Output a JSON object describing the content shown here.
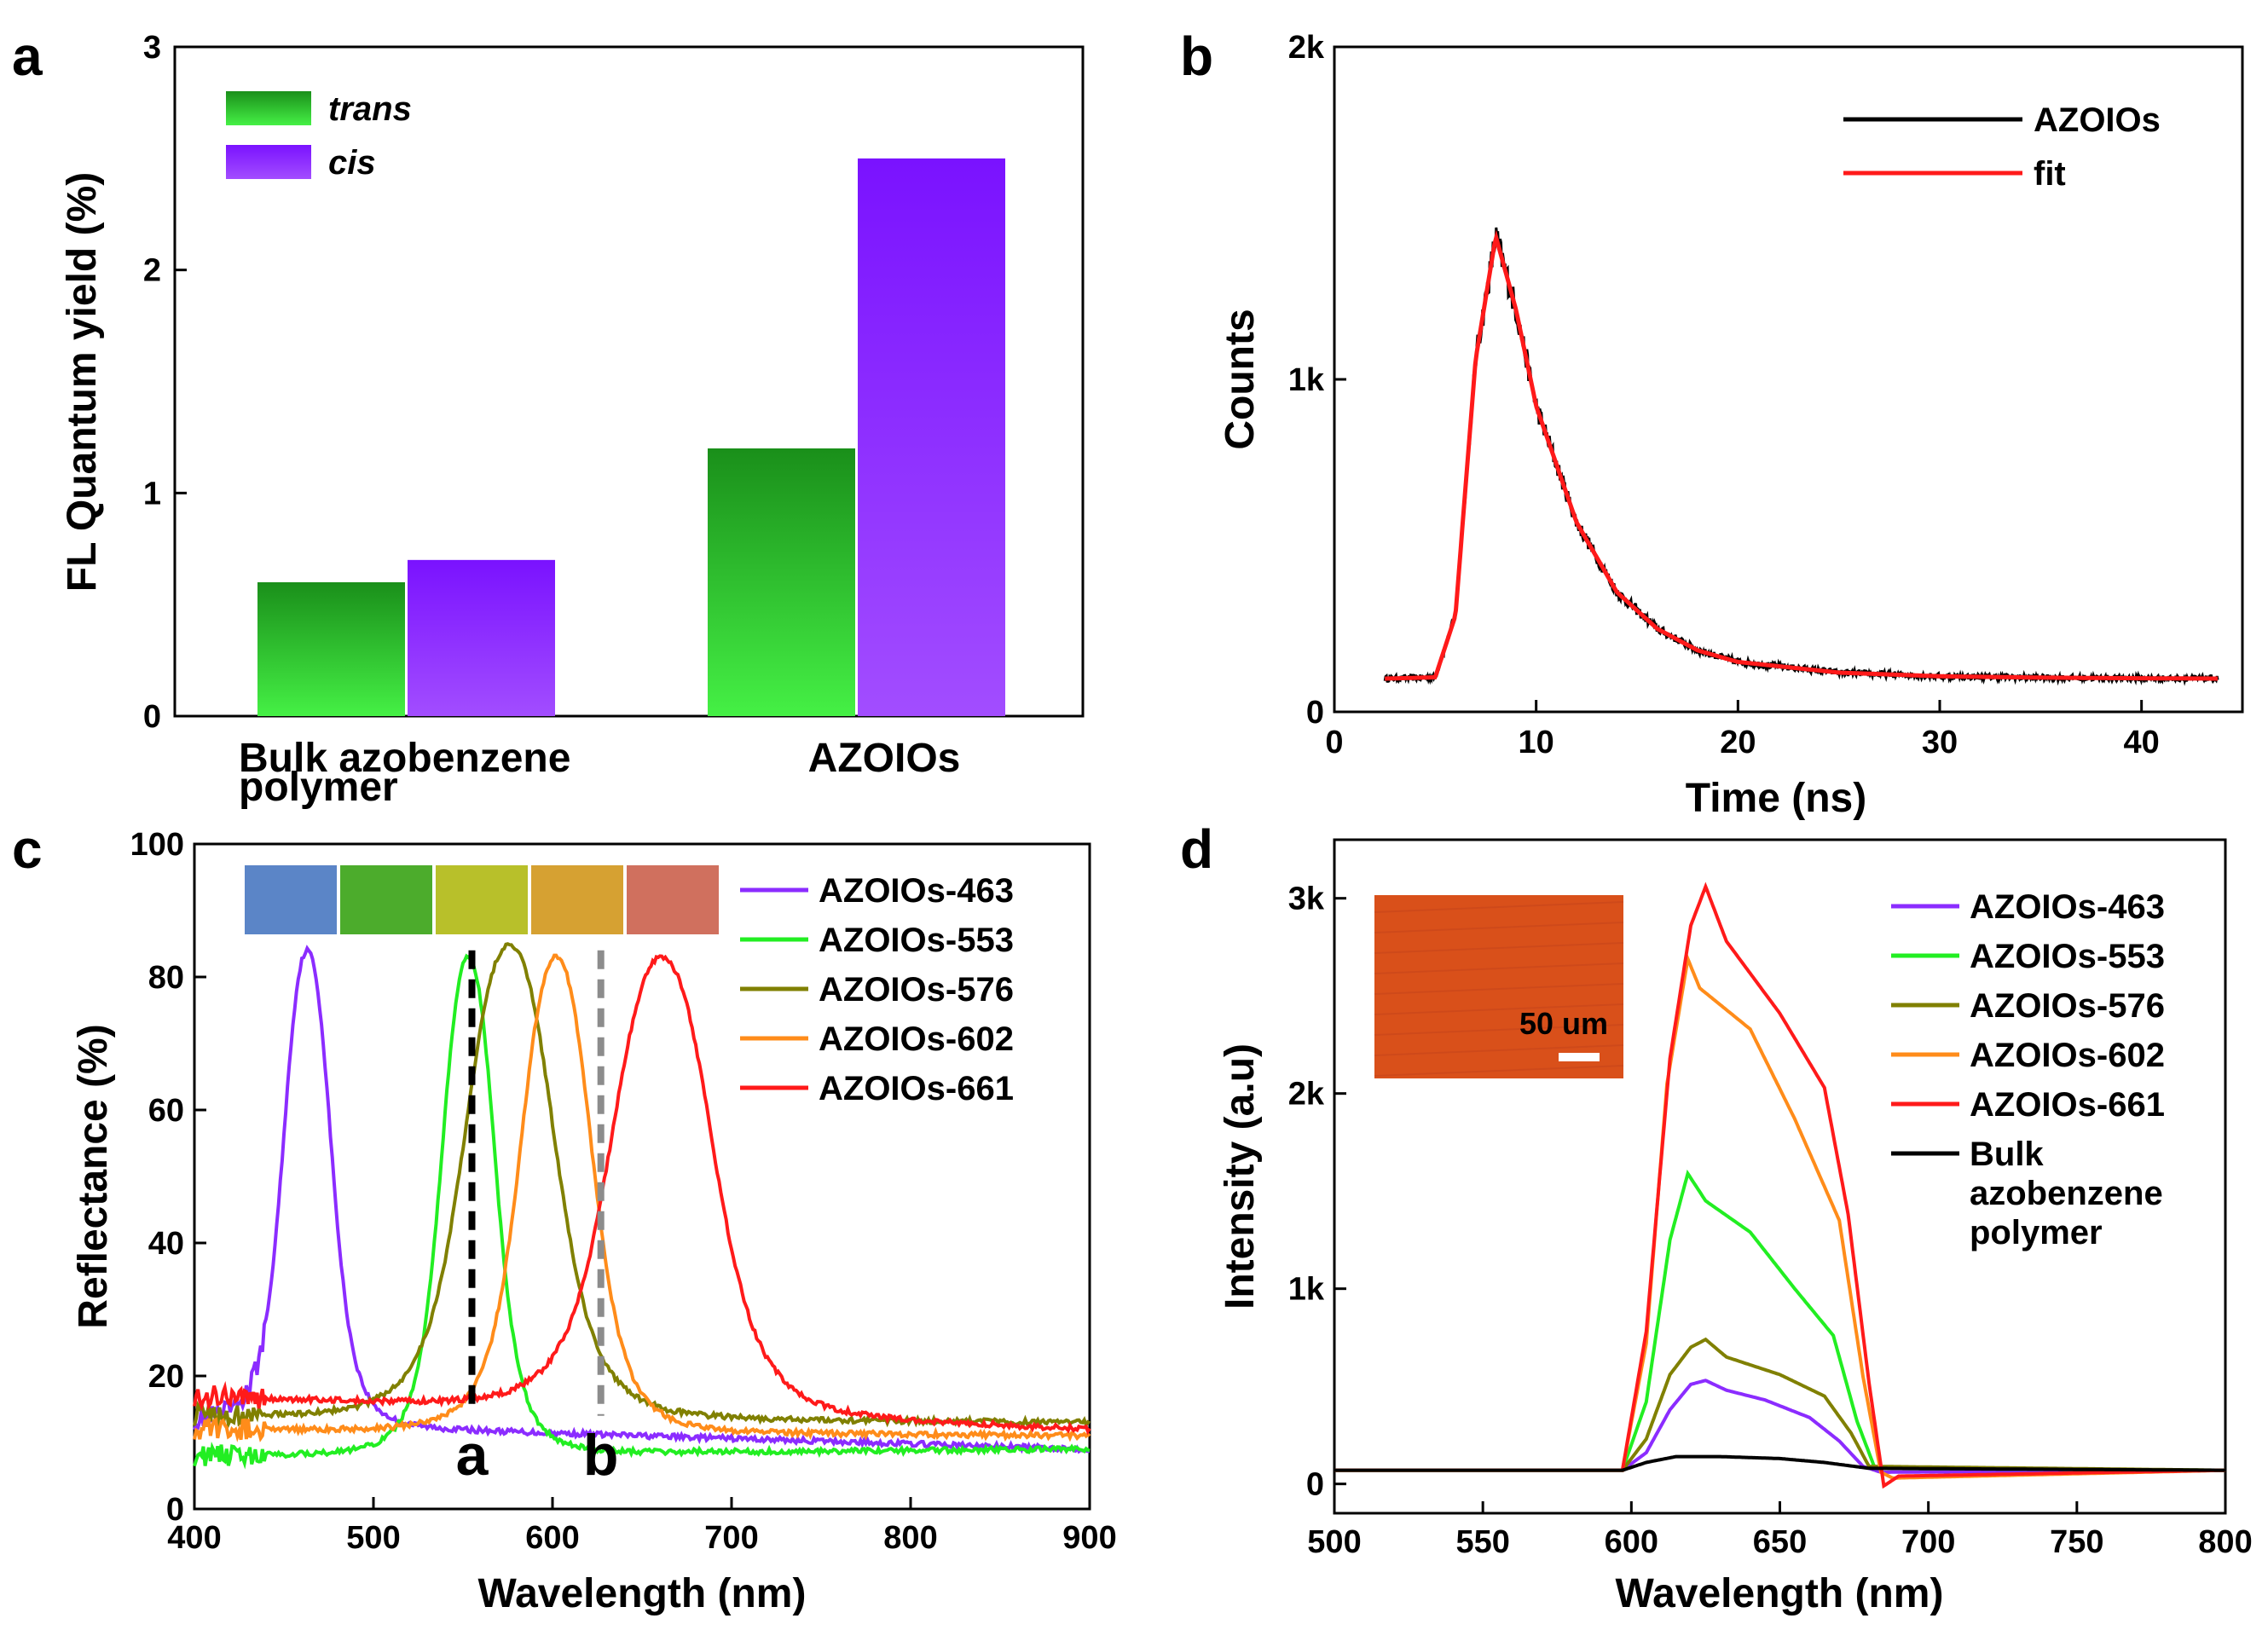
{
  "figure": {
    "panels": [
      "a",
      "b",
      "c",
      "d"
    ]
  },
  "chart_data": [
    {
      "id": "a",
      "type": "bar",
      "title": "",
      "ylabel": "FL Quantum yield (%)",
      "xlabel": "",
      "ylim": [
        0,
        3
      ],
      "yticks": [
        "0",
        "1",
        "2",
        "3"
      ],
      "categories": [
        "Bulk azobenzene polymer",
        "AZOIOs"
      ],
      "category_lines": [
        [
          "Bulk azobenzene",
          "polymer"
        ],
        [
          "AZOIOs"
        ]
      ],
      "series": [
        {
          "name": "trans",
          "color": "#2db82d",
          "values": [
            0.6,
            1.2
          ]
        },
        {
          "name": "cis",
          "color": "#8e24ff",
          "values": [
            0.7,
            2.5
          ]
        }
      ]
    },
    {
      "id": "b",
      "type": "line",
      "xlabel": "Time (ns)",
      "ylabel": "Counts",
      "xlim": [
        0,
        45
      ],
      "ylim": [
        0,
        2000
      ],
      "xticks": [
        "0",
        "10",
        "20",
        "30",
        "40"
      ],
      "yticks": [
        "0",
        "1k",
        "2k"
      ],
      "model": {
        "baseline": 100,
        "peak_time": 8,
        "peak": 1430,
        "rise_width": 1.2,
        "decay_ns": 3.6,
        "t_start": 2.5,
        "t_end": 43.8
      },
      "series": [
        {
          "name": "AZOIOs",
          "color": "#000000",
          "samples": [
            [
              2.5,
              100
            ],
            [
              5,
              104
            ],
            [
              6,
              290
            ],
            [
              7,
              1060
            ],
            [
              8,
              1430
            ],
            [
              9,
              1210
            ],
            [
              10,
              920
            ],
            [
              12,
              570
            ],
            [
              14,
              360
            ],
            [
              16,
              250
            ],
            [
              18,
              185
            ],
            [
              20,
              150
            ],
            [
              25,
              118
            ],
            [
              30,
              107
            ],
            [
              35,
              103
            ],
            [
              40,
              101
            ],
            [
              43.8,
              100
            ]
          ]
        },
        {
          "name": "fit",
          "color": "#ff1a1a",
          "samples": [
            [
              2.5,
              100
            ],
            [
              5,
              104
            ],
            [
              6,
              290
            ],
            [
              7,
              1060
            ],
            [
              8,
              1430
            ],
            [
              9,
              1210
            ],
            [
              10,
              920
            ],
            [
              12,
              570
            ],
            [
              14,
              360
            ],
            [
              16,
              250
            ],
            [
              18,
              185
            ],
            [
              20,
              150
            ],
            [
              25,
              118
            ],
            [
              30,
              107
            ],
            [
              35,
              103
            ],
            [
              40,
              101
            ],
            [
              43.8,
              100
            ]
          ]
        }
      ]
    },
    {
      "id": "c",
      "type": "line",
      "xlabel": "Wavelength (nm)",
      "ylabel": "Reflectance (%)",
      "xlim": [
        400,
        900
      ],
      "ylim": [
        0,
        100
      ],
      "xticks": [
        "400",
        "500",
        "600",
        "700",
        "800",
        "900"
      ],
      "yticks": [
        "0",
        "20",
        "40",
        "60",
        "80",
        "100"
      ],
      "series": [
        {
          "name": "AZOIOs-463",
          "color": "#8b2cff",
          "peak_nm": 463,
          "peak": 84,
          "width": 16,
          "base_short": 13,
          "base_long": 9
        },
        {
          "name": "AZOIOs-553",
          "color": "#22ee22",
          "peak_nm": 553,
          "peak": 83,
          "width": 18,
          "base_short": 8,
          "base_long": 9
        },
        {
          "name": "AZOIOs-576",
          "color": "#808000",
          "peak_nm": 576,
          "peak": 85,
          "width": 30,
          "base_short": 14,
          "base_long": 13
        },
        {
          "name": "AZOIOs-602",
          "color": "#ff8c1a",
          "peak_nm": 602,
          "peak": 83,
          "width": 24,
          "base_short": 12,
          "base_long": 11
        },
        {
          "name": "AZOIOs-661",
          "color": "#ff1a1a",
          "peak_nm": 661,
          "peak": 83,
          "width": 34,
          "base_short": 17,
          "base_long": 12
        }
      ],
      "markers": [
        {
          "label": "a",
          "x": 555,
          "color": "#000000",
          "y_top": 84,
          "y_bottom": 15
        },
        {
          "label": "b",
          "x": 627,
          "color": "#8c8c8c",
          "y_top": 84,
          "y_bottom": 14
        }
      ],
      "inset_colors": [
        "#5b85c7",
        "#4cac2c",
        "#b8c02a",
        "#d6a132",
        "#d0705e"
      ]
    },
    {
      "id": "d",
      "type": "line",
      "xlabel": "Wavelength (nm)",
      "ylabel": "Intensity (a.u)",
      "xlim": [
        500,
        800
      ],
      "ylim": [
        -150,
        3300
      ],
      "xticks": [
        "500",
        "550",
        "600",
        "650",
        "700",
        "750",
        "800"
      ],
      "yticks": [
        "0",
        "1k",
        "2k",
        "3k"
      ],
      "inset": {
        "scale_label": "50 um",
        "color": "#d9501a"
      },
      "series": [
        {
          "name": "AZOIOs-463",
          "color": "#8b2cff",
          "samples": [
            [
              500,
              70
            ],
            [
              597,
              70
            ],
            [
              605,
              160
            ],
            [
              613,
              380
            ],
            [
              620,
              510
            ],
            [
              625,
              530
            ],
            [
              632,
              480
            ],
            [
              645,
              430
            ],
            [
              660,
              340
            ],
            [
              670,
              220
            ],
            [
              678,
              90
            ],
            [
              684,
              60
            ],
            [
              800,
              70
            ]
          ]
        },
        {
          "name": "AZOIOs-553",
          "color": "#22ee22",
          "samples": [
            [
              500,
              70
            ],
            [
              597,
              70
            ],
            [
              605,
              420
            ],
            [
              613,
              1250
            ],
            [
              619,
              1590
            ],
            [
              625,
              1450
            ],
            [
              640,
              1290
            ],
            [
              655,
              1000
            ],
            [
              668,
              760
            ],
            [
              676,
              320
            ],
            [
              682,
              80
            ],
            [
              800,
              70
            ]
          ]
        },
        {
          "name": "AZOIOs-576",
          "color": "#808000",
          "samples": [
            [
              500,
              70
            ],
            [
              597,
              70
            ],
            [
              605,
              230
            ],
            [
              613,
              560
            ],
            [
              620,
              700
            ],
            [
              625,
              740
            ],
            [
              632,
              650
            ],
            [
              650,
              560
            ],
            [
              665,
              450
            ],
            [
              674,
              260
            ],
            [
              680,
              90
            ],
            [
              800,
              70
            ]
          ]
        },
        {
          "name": "AZOIOs-602",
          "color": "#ff8c1a",
          "samples": [
            [
              500,
              70
            ],
            [
              597,
              70
            ],
            [
              605,
              720
            ],
            [
              612,
              2050
            ],
            [
              619,
              2690
            ],
            [
              623,
              2540
            ],
            [
              640,
              2330
            ],
            [
              655,
              1870
            ],
            [
              670,
              1350
            ],
            [
              678,
              550
            ],
            [
              684,
              60
            ],
            [
              688,
              30
            ],
            [
              800,
              70
            ]
          ]
        },
        {
          "name": "AZOIOs-661",
          "color": "#ff1a1a",
          "samples": [
            [
              500,
              70
            ],
            [
              597,
              70
            ],
            [
              605,
              780
            ],
            [
              613,
              2180
            ],
            [
              620,
              2860
            ],
            [
              625,
              3060
            ],
            [
              632,
              2780
            ],
            [
              650,
              2410
            ],
            [
              665,
              2030
            ],
            [
              673,
              1380
            ],
            [
              680,
              520
            ],
            [
              685,
              -10
            ],
            [
              690,
              40
            ],
            [
              800,
              70
            ]
          ]
        },
        {
          "name": "Bulk azobenzene polymer",
          "color": "#000000",
          "legend_lines": [
            "Bulk",
            "azobenzene",
            "polymer"
          ],
          "samples": [
            [
              500,
              70
            ],
            [
              597,
              70
            ],
            [
              605,
              110
            ],
            [
              615,
              140
            ],
            [
              630,
              140
            ],
            [
              650,
              130
            ],
            [
              665,
              110
            ],
            [
              680,
              80
            ],
            [
              800,
              70
            ]
          ]
        }
      ]
    }
  ]
}
